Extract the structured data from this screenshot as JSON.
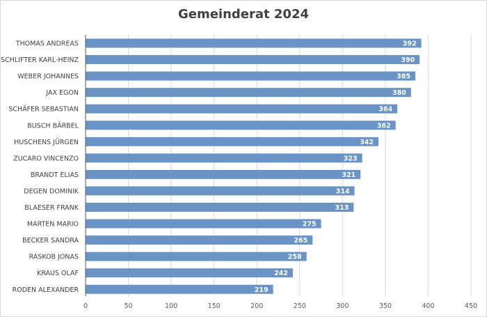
{
  "chart_data": {
    "type": "bar",
    "orientation": "horizontal",
    "title": "Gemeinderat 2024",
    "xlabel": "",
    "ylabel": "",
    "xlim": [
      0,
      450
    ],
    "xticks": [
      0,
      50,
      100,
      150,
      200,
      250,
      300,
      350,
      400,
      450
    ],
    "grid": true,
    "legend": "none",
    "bar_color": "#6a93c6",
    "data_labels": true,
    "categories": [
      "THOMAS ANDREAS",
      "SCHLIFTER KARL-HEINZ",
      "WEBER JOHANNES",
      "JAX EGON",
      "SCHÄFER SEBASTIAN",
      "BUSCH BÄRBEL",
      "HUSCHENS JÜRGEN",
      "ZUCARO VINCENZO",
      "BRANDT ELIAS",
      "DEGEN DOMINIK",
      "BLAESER FRANK",
      "MARTEN MARIO",
      "BECKER SANDRA",
      "RASKOB JONAS",
      "KRAUS OLAF",
      "RODEN ALEXANDER"
    ],
    "values": [
      392,
      390,
      385,
      380,
      364,
      362,
      342,
      323,
      321,
      314,
      313,
      275,
      265,
      258,
      242,
      219
    ]
  }
}
